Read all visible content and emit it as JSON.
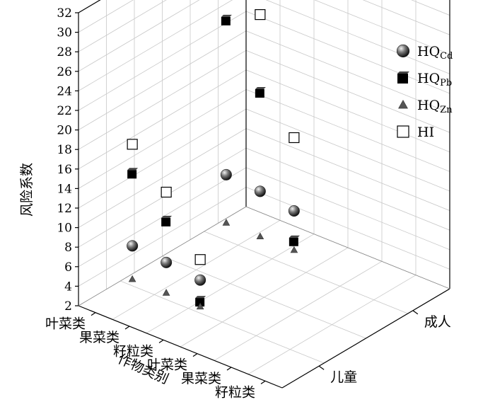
{
  "chart_data": {
    "type": "scatter3d",
    "zlabel": "风险系数",
    "xlabel": "作物类别",
    "z_ticks": [
      "2",
      "4",
      "6",
      "8",
      "10",
      "12",
      "14",
      "16",
      "18",
      "20",
      "22",
      "24",
      "26",
      "28",
      "30",
      "32"
    ],
    "zlim": [
      2,
      32
    ],
    "crop_categories": [
      "叶菜类",
      "果菜类",
      "籽粒类",
      "叶菜类",
      "果菜类",
      "籽粒类"
    ],
    "groups": [
      "成人",
      "儿童"
    ],
    "legend_position": "top-right",
    "series": [
      {
        "key": "HQ",
        "sub": "Cd",
        "marker": "sphere",
        "points": [
          {
            "crop": 0,
            "group": 0,
            "value": 8.2
          },
          {
            "crop": 1,
            "group": 0,
            "value": 7.9
          },
          {
            "crop": 2,
            "group": 0,
            "value": 7.3
          },
          {
            "crop": 0,
            "group": 1,
            "value": 6.6
          },
          {
            "crop": 1,
            "group": 1,
            "value": 6.3
          },
          {
            "crop": 2,
            "group": 1,
            "value": 5.9
          }
        ]
      },
      {
        "key": "HQ",
        "sub": "Pb",
        "marker": "cube",
        "points": [
          {
            "crop": 0,
            "group": 0,
            "value": 24.0
          },
          {
            "crop": 1,
            "group": 0,
            "value": 18.0
          },
          {
            "crop": 2,
            "group": 0,
            "value": 4.2
          },
          {
            "crop": 0,
            "group": 1,
            "value": 14.0
          },
          {
            "crop": 1,
            "group": 1,
            "value": 10.5
          },
          {
            "crop": 2,
            "group": 1,
            "value": 3.7
          }
        ]
      },
      {
        "key": "HQ",
        "sub": "Zn",
        "marker": "triangle",
        "points": [
          {
            "crop": 0,
            "group": 0,
            "value": 3.3
          },
          {
            "crop": 1,
            "group": 0,
            "value": 3.3
          },
          {
            "crop": 2,
            "group": 0,
            "value": 3.3
          },
          {
            "crop": 0,
            "group": 1,
            "value": 3.2
          },
          {
            "crop": 1,
            "group": 1,
            "value": 3.2
          },
          {
            "crop": 2,
            "group": 1,
            "value": 3.2
          }
        ]
      },
      {
        "key": "HI",
        "sub": "",
        "marker": "open-square",
        "points": [
          {
            "crop": 0,
            "group": 0,
            "value": 32.5
          },
          {
            "crop": 1,
            "group": 0,
            "value": 26.0
          },
          {
            "crop": 2,
            "group": 0,
            "value": 14.8
          },
          {
            "crop": 0,
            "group": 1,
            "value": 17.0
          },
          {
            "crop": 1,
            "group": 1,
            "value": 13.5
          },
          {
            "crop": 2,
            "group": 1,
            "value": 8.0
          }
        ]
      }
    ]
  }
}
